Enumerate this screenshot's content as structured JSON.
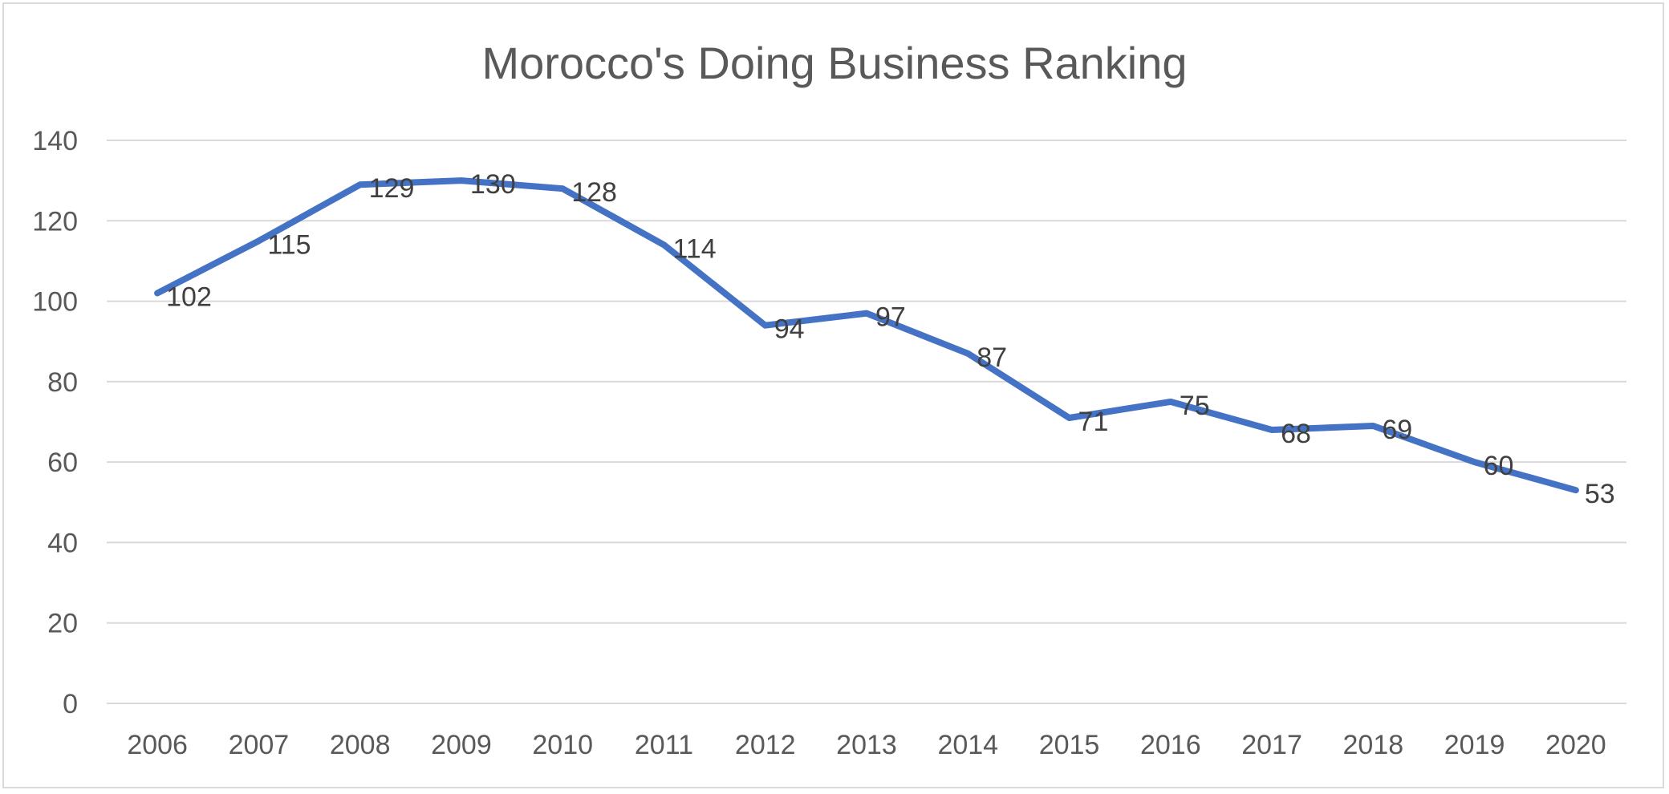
{
  "chart_data": {
    "type": "line",
    "title": "Morocco's Doing Business Ranking",
    "xlabel": "",
    "ylabel": "",
    "categories": [
      "2006",
      "2007",
      "2008",
      "2009",
      "2010",
      "2011",
      "2012",
      "2013",
      "2014",
      "2015",
      "2016",
      "2017",
      "2018",
      "2019",
      "2020"
    ],
    "series": [
      {
        "values": [
          102,
          115,
          129,
          130,
          128,
          114,
          94,
          97,
          87,
          71,
          75,
          68,
          69,
          60,
          53
        ],
        "color": "#4472c4"
      }
    ],
    "ylim": [
      0,
      140
    ],
    "yticks": [
      0,
      20,
      40,
      60,
      80,
      100,
      120,
      140
    ],
    "grid": true,
    "legend": "none",
    "data_labels": true
  }
}
